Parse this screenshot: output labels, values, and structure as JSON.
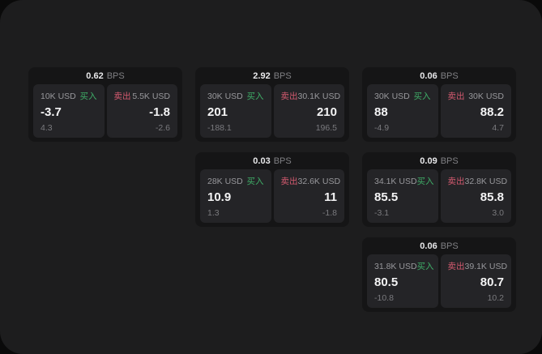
{
  "labels": {
    "bps_unit": "BPS",
    "buy": "买入",
    "sell": "卖出"
  },
  "colors": {
    "buy": "#3fae68",
    "sell": "#d45a6f",
    "panel_bg": "#1d1d1e",
    "card_bg": "#151516",
    "tile_bg": "#242427"
  },
  "cards": [
    {
      "row": 0,
      "col": 0,
      "bps": "0.62",
      "buy": {
        "amount": "10K USD",
        "value": "-3.7",
        "sub": "4.3"
      },
      "sell": {
        "amount": "5.5K USD",
        "value": "-1.8",
        "sub": "-2.6"
      }
    },
    {
      "row": 0,
      "col": 1,
      "bps": "2.92",
      "buy": {
        "amount": "30K USD",
        "value": "201",
        "sub": "-188.1"
      },
      "sell": {
        "amount": "30.1K USD",
        "value": "210",
        "sub": "196.5"
      }
    },
    {
      "row": 0,
      "col": 2,
      "bps": "0.06",
      "buy": {
        "amount": "30K USD",
        "value": "88",
        "sub": "-4.9"
      },
      "sell": {
        "amount": "30K USD",
        "value": "88.2",
        "sub": "4.7"
      }
    },
    {
      "row": 1,
      "col": 1,
      "bps": "0.03",
      "buy": {
        "amount": "28K USD",
        "value": "10.9",
        "sub": "1.3"
      },
      "sell": {
        "amount": "32.6K USD",
        "value": "11",
        "sub": "-1.8"
      }
    },
    {
      "row": 1,
      "col": 2,
      "bps": "0.09",
      "buy": {
        "amount": "34.1K USD",
        "value": "85.5",
        "sub": "-3.1"
      },
      "sell": {
        "amount": "32.8K USD",
        "value": "85.8",
        "sub": "3.0"
      }
    },
    {
      "row": 2,
      "col": 2,
      "bps": "0.06",
      "buy": {
        "amount": "31.8K USD",
        "value": "80.5",
        "sub": "-10.8"
      },
      "sell": {
        "amount": "39.1K USD",
        "value": "80.7",
        "sub": "10.2"
      }
    }
  ]
}
